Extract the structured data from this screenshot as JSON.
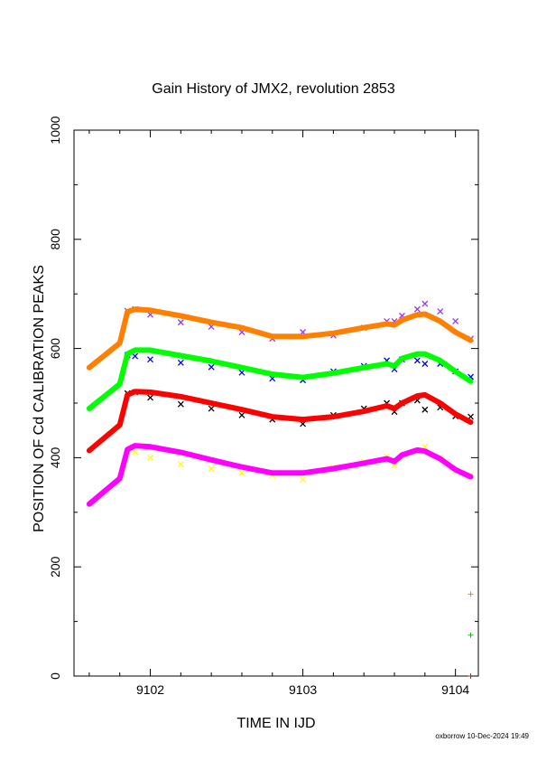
{
  "chart_data": {
    "type": "line",
    "title": "Gain History of JMX2, revolution 2853",
    "xlabel": "TIME IN IJD",
    "ylabel": "POSITION OF Cd CALIBRATION PEAKS",
    "xlim": [
      9101.5,
      9104.15
    ],
    "ylim": [
      0,
      1000
    ],
    "x_ticks": [
      9102,
      9103,
      9104
    ],
    "x_tick_labels": [
      "9102",
      "9103",
      "9104"
    ],
    "y_ticks": [
      0,
      200,
      400,
      600,
      800,
      1000
    ],
    "y_tick_labels": [
      "0",
      "200",
      "400",
      "600",
      "800",
      "1000"
    ],
    "grid": false,
    "x": [
      9101.6,
      9101.8,
      9101.85,
      9101.9,
      9102.0,
      9102.2,
      9102.4,
      9102.6,
      9102.8,
      9103.0,
      9103.2,
      9103.4,
      9103.55,
      9103.6,
      9103.65,
      9103.75,
      9103.8,
      9103.9,
      9104.0,
      9104.1
    ],
    "series": [
      {
        "values": [
          565,
          610,
          667,
          672,
          670,
          660,
          648,
          638,
          622,
          622,
          628,
          638,
          645,
          643,
          652,
          662,
          663,
          650,
          630,
          615
        ],
        "color": "#ff7f00"
      },
      {
        "values": [
          490,
          535,
          590,
          597,
          597,
          587,
          577,
          565,
          553,
          547,
          555,
          565,
          572,
          568,
          582,
          590,
          590,
          578,
          558,
          540
        ],
        "color": "#00ff00"
      },
      {
        "values": [
          413,
          460,
          515,
          521,
          520,
          512,
          500,
          488,
          475,
          470,
          475,
          485,
          495,
          490,
          500,
          513,
          515,
          500,
          480,
          465
        ],
        "color": "#ff0000"
      },
      {
        "values": [
          315,
          362,
          415,
          422,
          420,
          410,
          396,
          383,
          372,
          372,
          380,
          390,
          398,
          393,
          405,
          414,
          412,
          398,
          378,
          365
        ],
        "color": "#ff00ff"
      }
    ],
    "scatter_series": [
      {
        "color": "#9933ff",
        "values": [
          684,
          676,
          669,
          672,
          662,
          648,
          640,
          630,
          618,
          630,
          624,
          638,
          650,
          650,
          660,
          672,
          682,
          668,
          650,
          618
        ]
      },
      {
        "color": "#0000ff",
        "values": [
          600,
          600,
          588,
          586,
          580,
          574,
          566,
          556,
          545,
          542,
          558,
          568,
          578,
          562,
          580,
          578,
          572,
          572,
          558,
          548
        ]
      },
      {
        "color": "#000000",
        "values": [
          536,
          532,
          518,
          520,
          510,
          498,
          490,
          478,
          470,
          462,
          478,
          490,
          500,
          484,
          500,
          505,
          488,
          492,
          476,
          475
        ]
      },
      {
        "color": "#ffff00",
        "values": [
          434,
          428,
          410,
          410,
          400,
          388,
          380,
          372,
          368,
          360,
          382,
          392,
          402,
          386,
          404,
          412,
          420,
          400,
          376,
          368
        ]
      }
    ],
    "markers": [
      {
        "x": 9104.1,
        "y": 150,
        "color": "#ff7f00"
      },
      {
        "x": 9104.1,
        "y": 75,
        "color": "#00cc00"
      },
      {
        "x": 9104.1,
        "y": 0,
        "color": "#ff0000"
      }
    ]
  },
  "footer": "oxborrow 10-Dec-2024 19:49"
}
